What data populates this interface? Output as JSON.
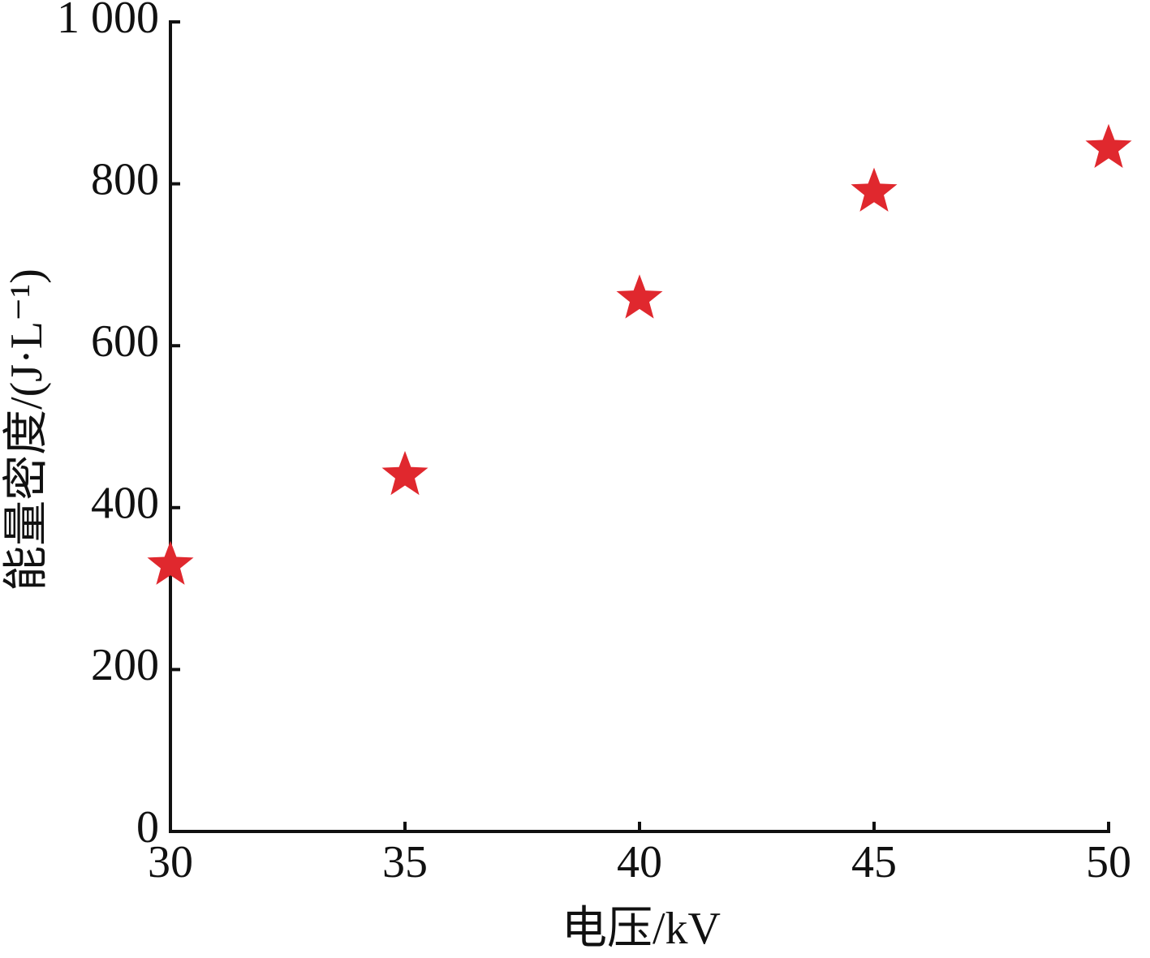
{
  "chart_data": {
    "type": "scatter",
    "xlabel": "电压/kV",
    "ylabel": "能量密度/(J·L⁻¹)",
    "series": [
      {
        "marker": "star",
        "color": "#e0282e",
        "x": [
          30,
          35,
          40,
          45,
          50
        ],
        "values": [
          329,
          440,
          658,
          790,
          844
        ]
      }
    ],
    "xlim": [
      30,
      50
    ],
    "xticks": [
      30,
      35,
      40,
      45,
      50
    ],
    "ylim": [
      0,
      1000
    ],
    "yticks": [
      0,
      200,
      400,
      600,
      800,
      {
        "value": 1000,
        "label": "1 000"
      }
    ],
    "grid": false
  }
}
